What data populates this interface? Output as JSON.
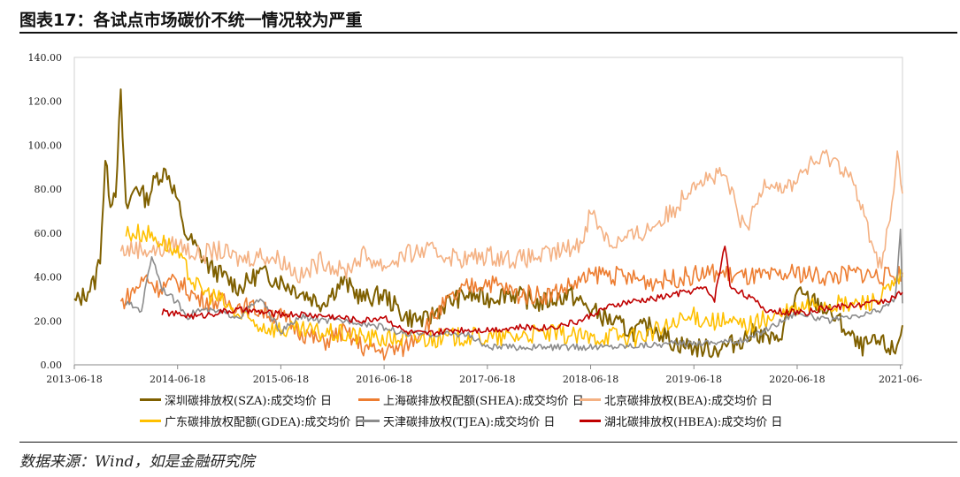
{
  "title": "图表17：各试点市场碳价不统一情况较为严重",
  "source": "数据来源：Wind，如是金融研究院",
  "chart_data": {
    "type": "line",
    "xlabel": "",
    "ylabel": "",
    "x_unit": "years since 2013-06-18",
    "xlim": [
      0,
      8.02
    ],
    "ylim": [
      0,
      140
    ],
    "x_ticks": [
      "2013-06-18",
      "2014-06-18",
      "2015-06-18",
      "2016-06-18",
      "2017-06-18",
      "2018-06-18",
      "2019-06-18",
      "2020-06-18",
      "2021-06-"
    ],
    "y_ticks": [
      "0.00",
      "20.00",
      "40.00",
      "60.00",
      "80.00",
      "100.00",
      "120.00",
      "140.00"
    ],
    "legend_position": "bottom",
    "series": [
      {
        "name": "深圳碳排放权(SZA):成交均价 日",
        "color": "#7f6000",
        "points": [
          [
            0,
            28
          ],
          [
            0.1,
            32
          ],
          [
            0.2,
            38
          ],
          [
            0.25,
            50
          ],
          [
            0.3,
            92
          ],
          [
            0.35,
            75
          ],
          [
            0.4,
            80
          ],
          [
            0.45,
            122
          ],
          [
            0.5,
            70
          ],
          [
            0.6,
            82
          ],
          [
            0.7,
            75
          ],
          [
            0.8,
            86
          ],
          [
            0.9,
            88
          ],
          [
            1.0,
            75
          ],
          [
            1.05,
            62
          ],
          [
            1.15,
            55
          ],
          [
            1.3,
            45
          ],
          [
            1.45,
            40
          ],
          [
            1.6,
            35
          ],
          [
            1.8,
            42
          ],
          [
            2.0,
            38
          ],
          [
            2.2,
            33
          ],
          [
            2.4,
            28
          ],
          [
            2.6,
            38
          ],
          [
            2.8,
            30
          ],
          [
            3.0,
            32
          ],
          [
            3.2,
            22
          ],
          [
            3.4,
            20
          ],
          [
            3.6,
            28
          ],
          [
            3.8,
            32
          ],
          [
            4.0,
            30
          ],
          [
            4.2,
            33
          ],
          [
            4.5,
            28
          ],
          [
            4.8,
            32
          ],
          [
            5.0,
            25
          ],
          [
            5.2,
            20
          ],
          [
            5.4,
            15
          ],
          [
            5.6,
            18
          ],
          [
            5.8,
            10
          ],
          [
            6.0,
            8
          ],
          [
            6.2,
            7
          ],
          [
            6.4,
            10
          ],
          [
            6.6,
            15
          ],
          [
            6.8,
            10
          ],
          [
            7.0,
            32
          ],
          [
            7.2,
            28
          ],
          [
            7.4,
            20
          ],
          [
            7.6,
            8
          ],
          [
            7.8,
            10
          ],
          [
            7.95,
            6
          ],
          [
            8.02,
            18
          ]
        ]
      },
      {
        "name": "上海碳排放权配额(SHEA):成交均价 日",
        "color": "#ed7d31",
        "points": [
          [
            0.45,
            28
          ],
          [
            0.6,
            35
          ],
          [
            0.7,
            40
          ],
          [
            0.8,
            35
          ],
          [
            1.0,
            38
          ],
          [
            1.2,
            30
          ],
          [
            1.5,
            28
          ],
          [
            1.8,
            25
          ],
          [
            2.0,
            22
          ],
          [
            2.2,
            15
          ],
          [
            2.4,
            10
          ],
          [
            2.6,
            15
          ],
          [
            2.8,
            8
          ],
          [
            3.0,
            6
          ],
          [
            3.2,
            8
          ],
          [
            3.4,
            18
          ],
          [
            3.6,
            28
          ],
          [
            3.8,
            35
          ],
          [
            4.0,
            38
          ],
          [
            4.3,
            32
          ],
          [
            4.6,
            32
          ],
          [
            4.9,
            38
          ],
          [
            5.1,
            42
          ],
          [
            5.3,
            40
          ],
          [
            5.6,
            38
          ],
          [
            5.9,
            40
          ],
          [
            6.2,
            42
          ],
          [
            6.5,
            40
          ],
          [
            6.8,
            40
          ],
          [
            7.0,
            42
          ],
          [
            7.3,
            40
          ],
          [
            7.6,
            42
          ],
          [
            7.85,
            40
          ],
          [
            8.02,
            42
          ]
        ]
      },
      {
        "name": "北京碳排放权(BEA):成交均价 日",
        "color": "#f4b183",
        "points": [
          [
            0.45,
            52
          ],
          [
            0.6,
            53
          ],
          [
            0.8,
            52
          ],
          [
            1.0,
            55
          ],
          [
            1.2,
            50
          ],
          [
            1.4,
            52
          ],
          [
            1.6,
            48
          ],
          [
            1.8,
            50
          ],
          [
            2.0,
            48
          ],
          [
            2.2,
            40
          ],
          [
            2.4,
            48
          ],
          [
            2.6,
            42
          ],
          [
            2.8,
            50
          ],
          [
            3.0,
            45
          ],
          [
            3.2,
            50
          ],
          [
            3.4,
            52
          ],
          [
            3.6,
            50
          ],
          [
            3.8,
            48
          ],
          [
            4.0,
            50
          ],
          [
            4.3,
            48
          ],
          [
            4.6,
            50
          ],
          [
            4.9,
            55
          ],
          [
            5.0,
            70
          ],
          [
            5.2,
            55
          ],
          [
            5.5,
            60
          ],
          [
            5.8,
            70
          ],
          [
            6.0,
            84
          ],
          [
            6.3,
            86
          ],
          [
            6.5,
            60
          ],
          [
            6.7,
            85
          ],
          [
            6.9,
            80
          ],
          [
            7.1,
            90
          ],
          [
            7.3,
            95
          ],
          [
            7.5,
            88
          ],
          [
            7.7,
            60
          ],
          [
            7.8,
            45
          ],
          [
            7.9,
            65
          ],
          [
            7.97,
            95
          ],
          [
            8.02,
            78
          ]
        ]
      },
      {
        "name": "广东碳排放权配额(GDEA):成交均价 日",
        "color": "#ffc000",
        "points": [
          [
            0.5,
            60
          ],
          [
            0.7,
            60
          ],
          [
            0.9,
            55
          ],
          [
            1.0,
            50
          ],
          [
            1.1,
            42
          ],
          [
            1.2,
            35
          ],
          [
            1.4,
            30
          ],
          [
            1.6,
            22
          ],
          [
            1.8,
            18
          ],
          [
            2.0,
            16
          ],
          [
            2.3,
            15
          ],
          [
            2.6,
            14
          ],
          [
            2.9,
            12
          ],
          [
            3.2,
            12
          ],
          [
            3.5,
            12
          ],
          [
            3.8,
            13
          ],
          [
            4.1,
            12
          ],
          [
            4.4,
            14
          ],
          [
            4.7,
            14
          ],
          [
            5.0,
            12
          ],
          [
            5.2,
            14
          ],
          [
            5.4,
            12
          ],
          [
            5.6,
            15
          ],
          [
            5.8,
            18
          ],
          [
            6.0,
            22
          ],
          [
            6.2,
            20
          ],
          [
            6.5,
            18
          ],
          [
            6.8,
            22
          ],
          [
            7.0,
            25
          ],
          [
            7.2,
            28
          ],
          [
            7.5,
            27
          ],
          [
            7.8,
            30
          ],
          [
            8.02,
            40
          ]
        ]
      },
      {
        "name": "天津碳排放权(TJEA):成交均价 日",
        "color": "#8c8c8c",
        "points": [
          [
            0.5,
            28
          ],
          [
            0.65,
            25
          ],
          [
            0.75,
            50
          ],
          [
            0.85,
            35
          ],
          [
            1.0,
            28
          ],
          [
            1.1,
            22
          ],
          [
            1.2,
            25
          ],
          [
            1.4,
            24
          ],
          [
            1.6,
            22
          ],
          [
            1.8,
            30
          ],
          [
            2.0,
            15
          ],
          [
            2.2,
            22
          ],
          [
            2.4,
            20
          ],
          [
            2.7,
            20
          ],
          [
            3.0,
            17
          ],
          [
            3.2,
            14
          ],
          [
            3.5,
            14
          ],
          [
            3.8,
            14
          ],
          [
            4.0,
            8
          ],
          [
            4.5,
            8
          ],
          [
            5.0,
            8
          ],
          [
            5.5,
            9
          ],
          [
            6.0,
            10
          ],
          [
            6.5,
            11
          ],
          [
            7.0,
            24
          ],
          [
            7.3,
            20
          ],
          [
            7.6,
            22
          ],
          [
            7.8,
            25
          ],
          [
            7.95,
            30
          ],
          [
            8.0,
            62
          ],
          [
            8.02,
            28
          ]
        ]
      },
      {
        "name": "湖北碳排放权(HBEA):成交均价 日",
        "color": "#c00000",
        "points": [
          [
            0.85,
            24
          ],
          [
            1.0,
            23
          ],
          [
            1.2,
            22
          ],
          [
            1.4,
            24
          ],
          [
            1.6,
            25
          ],
          [
            1.8,
            24
          ],
          [
            2.0,
            23
          ],
          [
            2.2,
            23
          ],
          [
            2.5,
            22
          ],
          [
            2.8,
            20
          ],
          [
            3.0,
            22
          ],
          [
            3.2,
            15
          ],
          [
            3.4,
            14
          ],
          [
            3.7,
            16
          ],
          [
            4.0,
            16
          ],
          [
            4.3,
            17
          ],
          [
            4.6,
            17
          ],
          [
            4.9,
            20
          ],
          [
            5.1,
            25
          ],
          [
            5.3,
            28
          ],
          [
            5.6,
            30
          ],
          [
            5.8,
            32
          ],
          [
            6.0,
            34
          ],
          [
            6.1,
            35
          ],
          [
            6.2,
            30
          ],
          [
            6.3,
            55
          ],
          [
            6.35,
            36
          ],
          [
            6.5,
            32
          ],
          [
            6.7,
            25
          ],
          [
            6.9,
            24
          ],
          [
            7.1,
            24
          ],
          [
            7.3,
            26
          ],
          [
            7.5,
            27
          ],
          [
            7.7,
            28
          ],
          [
            7.9,
            30
          ],
          [
            8.02,
            33
          ]
        ]
      }
    ]
  }
}
